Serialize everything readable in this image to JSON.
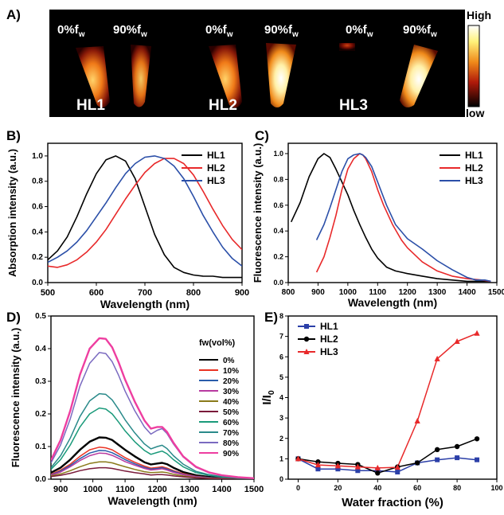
{
  "figure": {
    "panel_a": {
      "label": "A)",
      "groups": [
        {
          "name": "HL1",
          "left_tube_label": "0%f",
          "right_tube_label": "90%f",
          "subscript": "w"
        },
        {
          "name": "HL2",
          "left_tube_label": "0%f",
          "right_tube_label": "90%f",
          "subscript": "w"
        },
        {
          "name": "HL3",
          "left_tube_label": "0%f",
          "right_tube_label": "90%f",
          "subscript": "w"
        }
      ],
      "colorbar_high": "High",
      "colorbar_low": "low"
    },
    "labels": {
      "B": "B)",
      "C": "C)",
      "D": "D)",
      "E": "E)"
    }
  },
  "chart_data": [
    {
      "panel": "B",
      "type": "line",
      "xlabel": "Wavelength (nm)",
      "ylabel": "Absorption intensity (a.u.)",
      "xlim": [
        500,
        900
      ],
      "ylim": [
        0.0,
        1.1
      ],
      "xticks": [
        500,
        600,
        700,
        800,
        900
      ],
      "yticks": [
        "0.0",
        "0.2",
        "0.4",
        "0.6",
        "0.8",
        "1.0"
      ],
      "legend": "top-right",
      "series": [
        {
          "name": "HL1",
          "color": "#000000",
          "x": [
            500,
            520,
            540,
            560,
            580,
            600,
            620,
            640,
            660,
            680,
            700,
            720,
            740,
            760,
            780,
            800,
            820,
            840,
            860,
            880,
            900
          ],
          "y": [
            0.18,
            0.25,
            0.36,
            0.52,
            0.7,
            0.86,
            0.97,
            1.0,
            0.96,
            0.82,
            0.6,
            0.38,
            0.22,
            0.12,
            0.08,
            0.06,
            0.05,
            0.05,
            0.04,
            0.04,
            0.04
          ]
        },
        {
          "name": "HL2",
          "color": "#e8292a",
          "x": [
            500,
            520,
            540,
            560,
            580,
            600,
            620,
            640,
            660,
            680,
            700,
            720,
            740,
            760,
            780,
            800,
            820,
            840,
            860,
            880,
            900
          ],
          "y": [
            0.13,
            0.12,
            0.14,
            0.18,
            0.24,
            0.32,
            0.42,
            0.54,
            0.66,
            0.77,
            0.87,
            0.94,
            0.98,
            0.98,
            0.94,
            0.85,
            0.72,
            0.58,
            0.45,
            0.34,
            0.26
          ]
        },
        {
          "name": "HL3",
          "color": "#2b4fa8",
          "x": [
            500,
            520,
            540,
            560,
            580,
            600,
            620,
            640,
            660,
            680,
            700,
            720,
            740,
            760,
            780,
            800,
            820,
            840,
            860,
            880,
            900
          ],
          "y": [
            0.16,
            0.2,
            0.25,
            0.32,
            0.41,
            0.52,
            0.63,
            0.75,
            0.86,
            0.94,
            0.99,
            1.0,
            0.98,
            0.92,
            0.82,
            0.68,
            0.53,
            0.4,
            0.28,
            0.19,
            0.13
          ]
        }
      ]
    },
    {
      "panel": "C",
      "type": "line",
      "xlabel": "Wavelength (nm)",
      "ylabel": "Fluorescence intensity (a.u.)",
      "xlim": [
        800,
        1500
      ],
      "ylim": [
        0.0,
        1.08
      ],
      "xticks": [
        800,
        900,
        1000,
        1100,
        1200,
        1300,
        1400,
        1500
      ],
      "yticks": [
        "0.0",
        "0.2",
        "0.4",
        "0.6",
        "0.8",
        "1.0"
      ],
      "legend": "top-right",
      "series": [
        {
          "name": "HL1",
          "color": "#000000",
          "x": [
            810,
            840,
            870,
            900,
            920,
            940,
            960,
            980,
            1000,
            1020,
            1040,
            1060,
            1080,
            1100,
            1130,
            1160,
            1200,
            1250,
            1300,
            1350,
            1400,
            1450,
            1480
          ],
          "y": [
            0.47,
            0.62,
            0.82,
            0.96,
            1.0,
            0.97,
            0.88,
            0.78,
            0.68,
            0.56,
            0.45,
            0.35,
            0.26,
            0.19,
            0.12,
            0.09,
            0.07,
            0.05,
            0.03,
            0.02,
            0.01,
            0.01,
            0.01
          ]
        },
        {
          "name": "HL2",
          "color": "#e8292a",
          "x": [
            895,
            920,
            940,
            960,
            980,
            1000,
            1020,
            1040,
            1050,
            1060,
            1080,
            1100,
            1120,
            1150,
            1180,
            1200,
            1250,
            1300,
            1350,
            1400,
            1450,
            1480
          ],
          "y": [
            0.08,
            0.2,
            0.35,
            0.52,
            0.72,
            0.88,
            0.96,
            1.0,
            0.99,
            0.96,
            0.86,
            0.72,
            0.6,
            0.45,
            0.33,
            0.27,
            0.16,
            0.09,
            0.05,
            0.03,
            0.02,
            0.01
          ]
        },
        {
          "name": "HL3",
          "color": "#2b4fa8",
          "x": [
            895,
            920,
            940,
            960,
            980,
            1000,
            1020,
            1040,
            1050,
            1060,
            1080,
            1100,
            1130,
            1160,
            1200,
            1250,
            1300,
            1350,
            1400,
            1430,
            1460,
            1480
          ],
          "y": [
            0.33,
            0.45,
            0.58,
            0.72,
            0.86,
            0.96,
            0.99,
            1.0,
            0.99,
            0.97,
            0.9,
            0.78,
            0.6,
            0.45,
            0.34,
            0.26,
            0.17,
            0.1,
            0.04,
            0.02,
            0.02,
            0.01
          ]
        }
      ]
    },
    {
      "panel": "D",
      "type": "line",
      "xlabel": "Wavelength (nm)",
      "ylabel": "Fluorescence intensity (a.u.)",
      "xlim": [
        870,
        1500
      ],
      "ylim": [
        0.0,
        0.5
      ],
      "xticks": [
        900,
        1000,
        1100,
        1200,
        1300,
        1400,
        1500
      ],
      "yticks": [
        "0.0",
        "0.1",
        "0.2",
        "0.3",
        "0.4",
        "0.5"
      ],
      "legend_title": "fw(vol%)",
      "legend": "right",
      "x": [
        870,
        900,
        930,
        960,
        990,
        1020,
        1040,
        1060,
        1080,
        1100,
        1130,
        1160,
        1180,
        1200,
        1215,
        1230,
        1250,
        1280,
        1320,
        1360,
        1400,
        1450,
        1500
      ],
      "series": [
        {
          "name": "0%",
          "color": "#000000",
          "values": [
            0.02,
            0.035,
            0.06,
            0.09,
            0.115,
            0.128,
            0.127,
            0.12,
            0.105,
            0.09,
            0.07,
            0.052,
            0.045,
            0.048,
            0.05,
            0.046,
            0.035,
            0.022,
            0.012,
            0.007,
            0.004,
            0.002,
            0.001
          ]
        },
        {
          "name": "10%",
          "color": "#ea3323",
          "values": [
            0.015,
            0.028,
            0.046,
            0.07,
            0.09,
            0.098,
            0.096,
            0.09,
            0.078,
            0.066,
            0.052,
            0.04,
            0.034,
            0.036,
            0.038,
            0.034,
            0.026,
            0.017,
            0.009,
            0.005,
            0.003,
            0.002,
            0.001
          ]
        },
        {
          "name": "20%",
          "color": "#2a5caa",
          "values": [
            0.013,
            0.025,
            0.042,
            0.063,
            0.08,
            0.088,
            0.087,
            0.081,
            0.071,
            0.06,
            0.047,
            0.036,
            0.031,
            0.033,
            0.035,
            0.031,
            0.024,
            0.015,
            0.008,
            0.005,
            0.003,
            0.001,
            0.001
          ]
        },
        {
          "name": "30%",
          "color": "#b83aa0",
          "values": [
            0.012,
            0.022,
            0.038,
            0.057,
            0.072,
            0.08,
            0.079,
            0.073,
            0.064,
            0.054,
            0.043,
            0.033,
            0.028,
            0.03,
            0.032,
            0.028,
            0.021,
            0.014,
            0.007,
            0.004,
            0.002,
            0.001,
            0.001
          ]
        },
        {
          "name": "40%",
          "color": "#8a7a1a",
          "values": [
            0.01,
            0.016,
            0.026,
            0.038,
            0.048,
            0.053,
            0.053,
            0.05,
            0.044,
            0.038,
            0.03,
            0.023,
            0.02,
            0.021,
            0.022,
            0.02,
            0.015,
            0.01,
            0.005,
            0.003,
            0.002,
            0.001,
            0.001
          ]
        },
        {
          "name": "50%",
          "color": "#7a1a3a",
          "values": [
            0.008,
            0.012,
            0.018,
            0.026,
            0.032,
            0.035,
            0.035,
            0.033,
            0.029,
            0.025,
            0.02,
            0.016,
            0.013,
            0.014,
            0.014,
            0.013,
            0.01,
            0.007,
            0.004,
            0.002,
            0.001,
            0.001,
            0.0
          ]
        },
        {
          "name": "60%",
          "color": "#1a9a7a",
          "values": [
            0.03,
            0.06,
            0.105,
            0.16,
            0.2,
            0.218,
            0.215,
            0.2,
            0.175,
            0.148,
            0.115,
            0.088,
            0.076,
            0.082,
            0.086,
            0.078,
            0.06,
            0.038,
            0.02,
            0.012,
            0.007,
            0.003,
            0.002
          ]
        },
        {
          "name": "70%",
          "color": "#2a8a8a",
          "values": [
            0.035,
            0.072,
            0.126,
            0.192,
            0.24,
            0.262,
            0.26,
            0.243,
            0.214,
            0.182,
            0.142,
            0.108,
            0.093,
            0.1,
            0.104,
            0.094,
            0.072,
            0.046,
            0.024,
            0.014,
            0.008,
            0.004,
            0.002
          ]
        },
        {
          "name": "80%",
          "color": "#7a6ac0",
          "values": [
            0.05,
            0.105,
            0.185,
            0.285,
            0.355,
            0.388,
            0.385,
            0.36,
            0.318,
            0.27,
            0.21,
            0.16,
            0.138,
            0.15,
            0.155,
            0.14,
            0.108,
            0.068,
            0.036,
            0.02,
            0.012,
            0.006,
            0.003
          ]
        },
        {
          "name": "90%",
          "color": "#ee3ea0",
          "values": [
            0.058,
            0.12,
            0.21,
            0.32,
            0.4,
            0.432,
            0.43,
            0.404,
            0.358,
            0.305,
            0.238,
            0.18,
            0.155,
            0.16,
            0.16,
            0.145,
            0.112,
            0.07,
            0.038,
            0.021,
            0.012,
            0.006,
            0.003
          ]
        }
      ]
    },
    {
      "panel": "E",
      "type": "line",
      "xlabel": "Water fraction (%)",
      "ylabel": "I/I",
      "ylabel_subscript": "0",
      "xlim": [
        -5,
        100
      ],
      "ylim": [
        0,
        8
      ],
      "xticks": [
        0,
        20,
        40,
        60,
        80,
        100
      ],
      "yticks": [
        0,
        1,
        2,
        3,
        4,
        5,
        6,
        7,
        8
      ],
      "legend": "top-left",
      "x": [
        0,
        10,
        20,
        30,
        40,
        50,
        60,
        70,
        80,
        90
      ],
      "series": [
        {
          "name": "HL1",
          "color": "#2b3fa8",
          "marker": "square",
          "values": [
            1.0,
            0.5,
            0.5,
            0.42,
            0.42,
            0.35,
            0.8,
            0.95,
            1.05,
            0.95
          ]
        },
        {
          "name": "HL2",
          "color": "#000000",
          "marker": "circle",
          "values": [
            1.0,
            0.85,
            0.78,
            0.72,
            0.3,
            0.6,
            0.8,
            1.45,
            1.6,
            1.98
          ]
        },
        {
          "name": "HL3",
          "color": "#e8292a",
          "marker": "triangle",
          "values": [
            1.0,
            0.7,
            0.65,
            0.6,
            0.55,
            0.58,
            2.85,
            5.9,
            6.75,
            7.15
          ]
        }
      ]
    }
  ]
}
